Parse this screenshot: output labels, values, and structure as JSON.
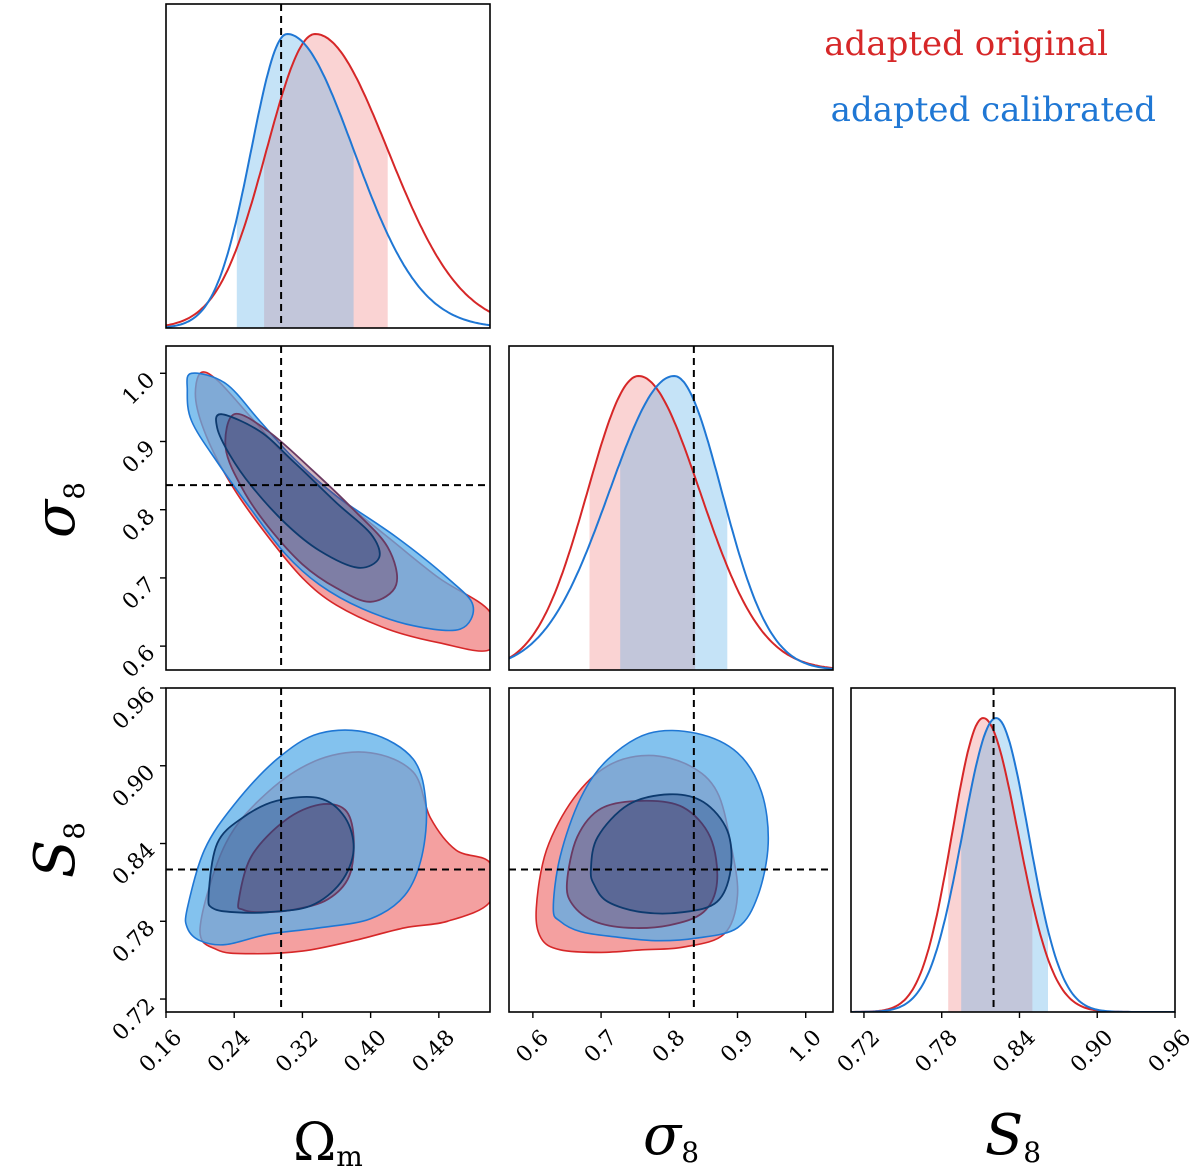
{
  "chart_data": {
    "type": "corner",
    "colors": {
      "original": "#d62728",
      "calibrated": "#1f77d4",
      "original_fill": "#f08080",
      "calibrated_fill": "#5aaee8"
    },
    "legend": [
      {
        "label": "adapted original",
        "series": "original"
      },
      {
        "label": "adapted calibrated",
        "series": "calibrated"
      }
    ],
    "parameters": [
      {
        "key": "Om",
        "label": "Ω",
        "subscript": "m",
        "range": [
          0.16,
          0.54
        ],
        "ticks": [
          "0.16",
          "0.24",
          "0.32",
          "0.40",
          "0.48"
        ],
        "tick_values": [
          0.16,
          0.24,
          0.32,
          0.4,
          0.48
        ],
        "truth": 0.295
      },
      {
        "key": "s8",
        "label": "σ",
        "subscript": "8",
        "range": [
          0.565,
          1.04
        ],
        "ticks": [
          "0.6",
          "0.7",
          "0.8",
          "0.9",
          "1.0"
        ],
        "tick_values": [
          0.6,
          0.7,
          0.8,
          0.9,
          1.0
        ],
        "truth": 0.836
      },
      {
        "key": "S8",
        "label": "S",
        "subscript": "8",
        "range": [
          0.71,
          0.96
        ],
        "ticks": [
          "0.72",
          "0.78",
          "0.84",
          "0.90",
          "0.96"
        ],
        "tick_values": [
          0.72,
          0.78,
          0.84,
          0.9,
          0.96
        ],
        "truth": 0.82
      }
    ],
    "marginals": [
      {
        "param": "Om",
        "series": [
          {
            "name": "original",
            "mean": 0.335,
            "sd_left": 0.057,
            "sd_right": 0.085,
            "band": [
              0.275,
              0.42
            ]
          },
          {
            "name": "calibrated",
            "mean": 0.302,
            "sd_left": 0.042,
            "sd_right": 0.078,
            "band": [
              0.243,
              0.38
            ]
          }
        ]
      },
      {
        "param": "s8",
        "series": [
          {
            "name": "original",
            "mean": 0.755,
            "sd_left": 0.075,
            "sd_right": 0.09,
            "band": [
              0.683,
              0.838
            ]
          },
          {
            "name": "calibrated",
            "mean": 0.807,
            "sd_left": 0.095,
            "sd_right": 0.07,
            "band": [
              0.728,
              0.885
            ]
          }
        ]
      },
      {
        "param": "S8",
        "series": [
          {
            "name": "original",
            "mean": 0.812,
            "sd_left": 0.024,
            "sd_right": 0.027,
            "band": [
              0.785,
              0.85
            ]
          },
          {
            "name": "calibrated",
            "mean": 0.822,
            "sd_left": 0.026,
            "sd_right": 0.025,
            "band": [
              0.795,
              0.862
            ]
          }
        ]
      }
    ],
    "contours": [
      {
        "x": "Om",
        "y": "s8",
        "series": [
          {
            "name": "original",
            "outer": [
              [
                0.2,
                1.0
              ],
              [
                0.22,
                0.99
              ],
              [
                0.26,
                0.935
              ],
              [
                0.3,
                0.88
              ],
              [
                0.36,
                0.82
              ],
              [
                0.42,
                0.76
              ],
              [
                0.48,
                0.7
              ],
              [
                0.54,
                0.65
              ],
              [
                0.54,
                0.595
              ],
              [
                0.48,
                0.605
              ],
              [
                0.42,
                0.625
              ],
              [
                0.36,
                0.66
              ],
              [
                0.32,
                0.7
              ],
              [
                0.28,
                0.76
              ],
              [
                0.24,
                0.83
              ],
              [
                0.21,
                0.9
              ],
              [
                0.195,
                0.96
              ]
            ],
            "inner": [
              [
                0.24,
                0.94
              ],
              [
                0.28,
                0.915
              ],
              [
                0.33,
                0.86
              ],
              [
                0.38,
                0.8
              ],
              [
                0.42,
                0.745
              ],
              [
                0.43,
                0.69
              ],
              [
                0.4,
                0.665
              ],
              [
                0.36,
                0.685
              ],
              [
                0.32,
                0.72
              ],
              [
                0.28,
                0.775
              ],
              [
                0.25,
                0.83
              ],
              [
                0.23,
                0.89
              ]
            ]
          },
          {
            "name": "calibrated",
            "outer": [
              [
                0.19,
                1.0
              ],
              [
                0.23,
                0.985
              ],
              [
                0.27,
                0.93
              ],
              [
                0.31,
                0.875
              ],
              [
                0.36,
                0.82
              ],
              [
                0.43,
                0.76
              ],
              [
                0.49,
                0.7
              ],
              [
                0.52,
                0.66
              ],
              [
                0.505,
                0.625
              ],
              [
                0.45,
                0.63
              ],
              [
                0.39,
                0.655
              ],
              [
                0.34,
                0.69
              ],
              [
                0.3,
                0.735
              ],
              [
                0.26,
                0.8
              ],
              [
                0.22,
                0.87
              ],
              [
                0.19,
                0.93
              ],
              [
                0.185,
                0.975
              ]
            ],
            "inner": [
              [
                0.225,
                0.94
              ],
              [
                0.27,
                0.915
              ],
              [
                0.31,
                0.87
              ],
              [
                0.36,
                0.81
              ],
              [
                0.4,
                0.765
              ],
              [
                0.41,
                0.73
              ],
              [
                0.385,
                0.715
              ],
              [
                0.34,
                0.74
              ],
              [
                0.3,
                0.78
              ],
              [
                0.26,
                0.835
              ],
              [
                0.235,
                0.88
              ],
              [
                0.22,
                0.92
              ]
            ]
          }
        ]
      },
      {
        "x": "Om",
        "y": "S8",
        "series": [
          {
            "name": "original",
            "outer": [
              [
                0.2,
                0.775
              ],
              [
                0.23,
                0.84
              ],
              [
                0.28,
                0.88
              ],
              [
                0.34,
                0.905
              ],
              [
                0.4,
                0.91
              ],
              [
                0.45,
                0.895
              ],
              [
                0.47,
                0.86
              ],
              [
                0.5,
                0.835
              ],
              [
                0.54,
                0.825
              ],
              [
                0.54,
                0.795
              ],
              [
                0.49,
                0.78
              ],
              [
                0.44,
                0.775
              ],
              [
                0.38,
                0.765
              ],
              [
                0.32,
                0.757
              ],
              [
                0.26,
                0.755
              ],
              [
                0.22,
                0.758
              ]
            ],
            "inner": [
              [
                0.245,
                0.795
              ],
              [
                0.26,
                0.83
              ],
              [
                0.3,
                0.858
              ],
              [
                0.34,
                0.87
              ],
              [
                0.37,
                0.866
              ],
              [
                0.38,
                0.845
              ],
              [
                0.375,
                0.815
              ],
              [
                0.35,
                0.797
              ],
              [
                0.31,
                0.789
              ],
              [
                0.27,
                0.787
              ],
              [
                0.25,
                0.789
              ]
            ]
          },
          {
            "name": "calibrated",
            "outer": [
              [
                0.185,
                0.79
              ],
              [
                0.205,
                0.835
              ],
              [
                0.24,
                0.87
              ],
              [
                0.29,
                0.905
              ],
              [
                0.34,
                0.925
              ],
              [
                0.4,
                0.925
              ],
              [
                0.45,
                0.905
              ],
              [
                0.465,
                0.87
              ],
              [
                0.46,
                0.83
              ],
              [
                0.44,
                0.8
              ],
              [
                0.4,
                0.782
              ],
              [
                0.34,
                0.775
              ],
              [
                0.28,
                0.77
              ],
              [
                0.23,
                0.762
              ],
              [
                0.2,
                0.765
              ],
              [
                0.185,
                0.775
              ]
            ],
            "inner": [
              [
                0.21,
                0.8
              ],
              [
                0.22,
                0.84
              ],
              [
                0.25,
                0.86
              ],
              [
                0.29,
                0.873
              ],
              [
                0.34,
                0.875
              ],
              [
                0.37,
                0.86
              ],
              [
                0.38,
                0.835
              ],
              [
                0.365,
                0.81
              ],
              [
                0.33,
                0.792
              ],
              [
                0.28,
                0.787
              ],
              [
                0.24,
                0.787
              ],
              [
                0.215,
                0.79
              ]
            ]
          }
        ]
      },
      {
        "x": "s8",
        "y": "S8",
        "series": [
          {
            "name": "original",
            "outer": [
              [
                0.605,
                0.79
              ],
              [
                0.62,
                0.835
              ],
              [
                0.66,
                0.875
              ],
              [
                0.71,
                0.9
              ],
              [
                0.77,
                0.908
              ],
              [
                0.83,
                0.9
              ],
              [
                0.87,
                0.88
              ],
              [
                0.89,
                0.84
              ],
              [
                0.9,
                0.8
              ],
              [
                0.88,
                0.77
              ],
              [
                0.82,
                0.76
              ],
              [
                0.76,
                0.758
              ],
              [
                0.7,
                0.756
              ],
              [
                0.64,
                0.758
              ],
              [
                0.612,
                0.767
              ]
            ],
            "inner": [
              [
                0.65,
                0.81
              ],
              [
                0.665,
                0.845
              ],
              [
                0.7,
                0.867
              ],
              [
                0.76,
                0.873
              ],
              [
                0.82,
                0.868
              ],
              [
                0.86,
                0.845
              ],
              [
                0.87,
                0.81
              ],
              [
                0.85,
                0.787
              ],
              [
                0.8,
                0.777
              ],
              [
                0.74,
                0.775
              ],
              [
                0.69,
                0.78
              ],
              [
                0.658,
                0.793
              ]
            ]
          },
          {
            "name": "calibrated",
            "outer": [
              [
                0.63,
                0.79
              ],
              [
                0.64,
                0.83
              ],
              [
                0.67,
                0.875
              ],
              [
                0.71,
                0.905
              ],
              [
                0.77,
                0.925
              ],
              [
                0.84,
                0.925
              ],
              [
                0.9,
                0.91
              ],
              [
                0.935,
                0.88
              ],
              [
                0.945,
                0.84
              ],
              [
                0.93,
                0.8
              ],
              [
                0.9,
                0.775
              ],
              [
                0.84,
                0.767
              ],
              [
                0.78,
                0.765
              ],
              [
                0.72,
                0.768
              ],
              [
                0.67,
                0.772
              ],
              [
                0.64,
                0.78
              ]
            ],
            "inner": [
              [
                0.685,
                0.82
              ],
              [
                0.695,
                0.845
              ],
              [
                0.74,
                0.87
              ],
              [
                0.8,
                0.878
              ],
              [
                0.85,
                0.872
              ],
              [
                0.885,
                0.85
              ],
              [
                0.89,
                0.82
              ],
              [
                0.87,
                0.795
              ],
              [
                0.82,
                0.787
              ],
              [
                0.76,
                0.787
              ],
              [
                0.71,
                0.795
              ],
              [
                0.69,
                0.808
              ]
            ]
          }
        ]
      }
    ]
  }
}
